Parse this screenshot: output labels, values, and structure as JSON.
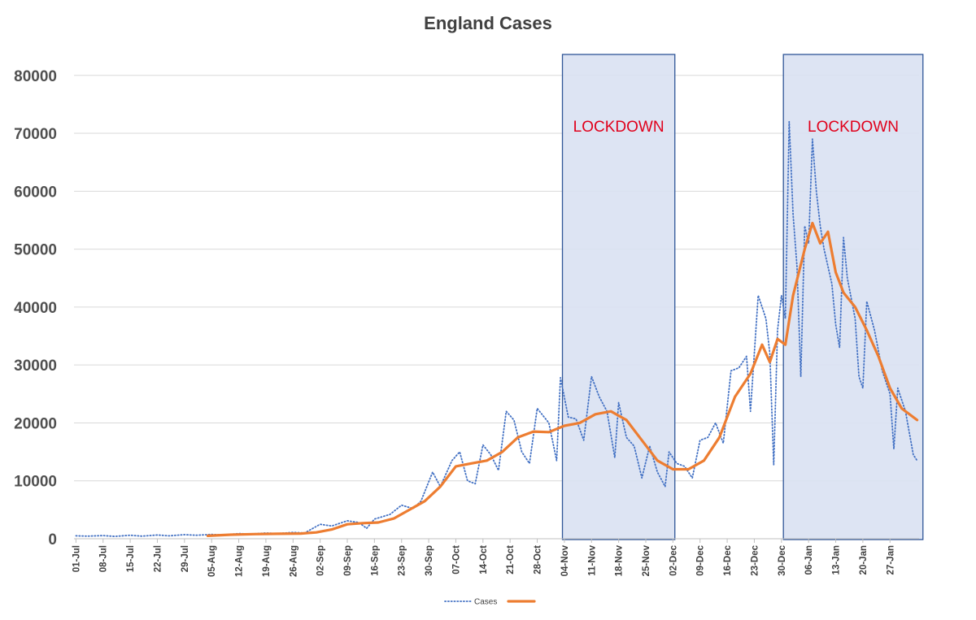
{
  "chart_data": {
    "type": "line",
    "title": "England Cases",
    "xlabel": "",
    "ylabel": "",
    "ylim": [
      0,
      86000
    ],
    "yticks": [
      0,
      10000,
      20000,
      30000,
      40000,
      50000,
      60000,
      70000,
      80000
    ],
    "x_range": [
      "2020-07-01",
      "2021-02-01"
    ],
    "x_tick_labels": [
      "01-Jul",
      "08-Jul",
      "15-Jul",
      "22-Jul",
      "29-Jul",
      "05-Aug",
      "12-Aug",
      "19-Aug",
      "26-Aug",
      "02-Sep",
      "09-Sep",
      "16-Sep",
      "23-Sep",
      "30-Sep",
      "07-Oct",
      "14-Oct",
      "21-Oct",
      "28-Oct",
      "04-Nov",
      "11-Nov",
      "18-Nov",
      "25-Nov",
      "02-Dec",
      "09-Dec",
      "16-Dec",
      "23-Dec",
      "30-Dec",
      "06-Jan",
      "13-Jan",
      "20-Jan",
      "27-Jan"
    ],
    "grid": "horizontal",
    "legend": "bottom",
    "series": [
      {
        "name": "Cases",
        "style": "dotted",
        "color": "#4472c4",
        "points": [
          [
            "2020-07-01",
            500
          ],
          [
            "2020-07-04",
            450
          ],
          [
            "2020-07-08",
            550
          ],
          [
            "2020-07-11",
            400
          ],
          [
            "2020-07-15",
            600
          ],
          [
            "2020-07-18",
            450
          ],
          [
            "2020-07-22",
            650
          ],
          [
            "2020-07-25",
            500
          ],
          [
            "2020-07-29",
            700
          ],
          [
            "2020-08-01",
            600
          ],
          [
            "2020-08-05",
            750
          ],
          [
            "2020-08-08",
            650
          ],
          [
            "2020-08-12",
            900
          ],
          [
            "2020-08-15",
            800
          ],
          [
            "2020-08-19",
            1000
          ],
          [
            "2020-08-22",
            900
          ],
          [
            "2020-08-26",
            1100
          ],
          [
            "2020-08-29",
            1000
          ],
          [
            "2020-09-02",
            2500
          ],
          [
            "2020-09-05",
            2200
          ],
          [
            "2020-09-09",
            3100
          ],
          [
            "2020-09-12",
            2800
          ],
          [
            "2020-09-14",
            1800
          ],
          [
            "2020-09-16",
            3400
          ],
          [
            "2020-09-20",
            4200
          ],
          [
            "2020-09-23",
            5800
          ],
          [
            "2020-09-26",
            5200
          ],
          [
            "2020-09-28",
            6500
          ],
          [
            "2020-10-01",
            11500
          ],
          [
            "2020-10-03",
            9000
          ],
          [
            "2020-10-06",
            13500
          ],
          [
            "2020-10-08",
            15000
          ],
          [
            "2020-10-10",
            10000
          ],
          [
            "2020-10-12",
            9500
          ],
          [
            "2020-10-14",
            16200
          ],
          [
            "2020-10-16",
            14500
          ],
          [
            "2020-10-18",
            11800
          ],
          [
            "2020-10-20",
            22000
          ],
          [
            "2020-10-22",
            20500
          ],
          [
            "2020-10-24",
            15000
          ],
          [
            "2020-10-26",
            13000
          ],
          [
            "2020-10-28",
            22500
          ],
          [
            "2020-10-31",
            20000
          ],
          [
            "2020-11-02",
            13500
          ],
          [
            "2020-11-03",
            27800
          ],
          [
            "2020-11-05",
            21000
          ],
          [
            "2020-11-07",
            20700
          ],
          [
            "2020-11-09",
            17000
          ],
          [
            "2020-11-11",
            28000
          ],
          [
            "2020-11-13",
            24500
          ],
          [
            "2020-11-15",
            22000
          ],
          [
            "2020-11-17",
            14000
          ],
          [
            "2020-11-18",
            23500
          ],
          [
            "2020-11-20",
            17500
          ],
          [
            "2020-11-22",
            16000
          ],
          [
            "2020-11-24",
            10500
          ],
          [
            "2020-11-26",
            16000
          ],
          [
            "2020-11-28",
            11500
          ],
          [
            "2020-11-30",
            9000
          ],
          [
            "2020-12-01",
            15000
          ],
          [
            "2020-12-03",
            13000
          ],
          [
            "2020-12-05",
            12500
          ],
          [
            "2020-12-07",
            10500
          ],
          [
            "2020-12-09",
            17000
          ],
          [
            "2020-12-11",
            17500
          ],
          [
            "2020-12-13",
            20000
          ],
          [
            "2020-12-15",
            16500
          ],
          [
            "2020-12-17",
            29000
          ],
          [
            "2020-12-19",
            29500
          ],
          [
            "2020-12-21",
            31500
          ],
          [
            "2020-12-22",
            22000
          ],
          [
            "2020-12-24",
            42000
          ],
          [
            "2020-12-26",
            38000
          ],
          [
            "2020-12-27",
            32000
          ],
          [
            "2020-12-28",
            12800
          ],
          [
            "2020-12-29",
            36000
          ],
          [
            "2020-12-30",
            42000
          ],
          [
            "2020-12-31",
            38000
          ],
          [
            "2021-01-01",
            72000
          ],
          [
            "2021-01-02",
            56000
          ],
          [
            "2021-01-03",
            47000
          ],
          [
            "2021-01-04",
            28000
          ],
          [
            "2021-01-05",
            54000
          ],
          [
            "2021-01-06",
            51000
          ],
          [
            "2021-01-07",
            69000
          ],
          [
            "2021-01-08",
            60000
          ],
          [
            "2021-01-09",
            54000
          ],
          [
            "2021-01-10",
            50000
          ],
          [
            "2021-01-12",
            44000
          ],
          [
            "2021-01-13",
            37000
          ],
          [
            "2021-01-14",
            33000
          ],
          [
            "2021-01-15",
            52000
          ],
          [
            "2021-01-16",
            45000
          ],
          [
            "2021-01-18",
            38000
          ],
          [
            "2021-01-19",
            28000
          ],
          [
            "2021-01-20",
            26000
          ],
          [
            "2021-01-21",
            41000
          ],
          [
            "2021-01-23",
            36000
          ],
          [
            "2021-01-25",
            29000
          ],
          [
            "2021-01-27",
            25000
          ],
          [
            "2021-01-28",
            15500
          ],
          [
            "2021-01-29",
            26000
          ],
          [
            "2021-01-31",
            22000
          ],
          [
            "2021-02-02",
            14500
          ],
          [
            "2021-02-03",
            13500
          ]
        ]
      },
      {
        "name": "",
        "style": "solid",
        "color": "#ed7d31",
        "points": [
          [
            "2020-08-04",
            500
          ],
          [
            "2020-08-10",
            700
          ],
          [
            "2020-08-16",
            800
          ],
          [
            "2020-08-22",
            850
          ],
          [
            "2020-08-28",
            900
          ],
          [
            "2020-09-01",
            1100
          ],
          [
            "2020-09-05",
            1600
          ],
          [
            "2020-09-09",
            2500
          ],
          [
            "2020-09-13",
            2700
          ],
          [
            "2020-09-17",
            2800
          ],
          [
            "2020-09-21",
            3500
          ],
          [
            "2020-09-25",
            5000
          ],
          [
            "2020-09-29",
            6500
          ],
          [
            "2020-10-03",
            9000
          ],
          [
            "2020-10-07",
            12500
          ],
          [
            "2020-10-11",
            13000
          ],
          [
            "2020-10-15",
            13500
          ],
          [
            "2020-10-19",
            15000
          ],
          [
            "2020-10-23",
            17500
          ],
          [
            "2020-10-27",
            18500
          ],
          [
            "2020-10-31",
            18400
          ],
          [
            "2020-11-04",
            19500
          ],
          [
            "2020-11-08",
            20000
          ],
          [
            "2020-11-12",
            21500
          ],
          [
            "2020-11-16",
            22000
          ],
          [
            "2020-11-20",
            20500
          ],
          [
            "2020-11-24",
            17000
          ],
          [
            "2020-11-28",
            13500
          ],
          [
            "2020-12-02",
            12000
          ],
          [
            "2020-12-06",
            12000
          ],
          [
            "2020-12-10",
            13500
          ],
          [
            "2020-12-14",
            17500
          ],
          [
            "2020-12-18",
            24500
          ],
          [
            "2020-12-22",
            28500
          ],
          [
            "2020-12-25",
            33500
          ],
          [
            "2020-12-27",
            30500
          ],
          [
            "2020-12-29",
            34500
          ],
          [
            "2020-12-31",
            33500
          ],
          [
            "2021-01-02",
            42000
          ],
          [
            "2021-01-05",
            50000
          ],
          [
            "2021-01-07",
            54500
          ],
          [
            "2021-01-09",
            51000
          ],
          [
            "2021-01-11",
            53000
          ],
          [
            "2021-01-13",
            46000
          ],
          [
            "2021-01-15",
            42500
          ],
          [
            "2021-01-18",
            40000
          ],
          [
            "2021-01-21",
            36000
          ],
          [
            "2021-01-24",
            31500
          ],
          [
            "2021-01-27",
            26000
          ],
          [
            "2021-01-30",
            22500
          ],
          [
            "2021-02-03",
            20500
          ]
        ]
      }
    ],
    "annotations": [
      {
        "label": "LOCKDOWN",
        "start": "2020-11-04",
        "end": "2020-12-02",
        "fill": "#d9e1f2",
        "stroke": "#2f5597"
      },
      {
        "label": "LOCKDOWN",
        "start": "2020-12-31",
        "end": "2021-02-04",
        "fill": "#d9e1f2",
        "stroke": "#2f5597"
      }
    ]
  }
}
